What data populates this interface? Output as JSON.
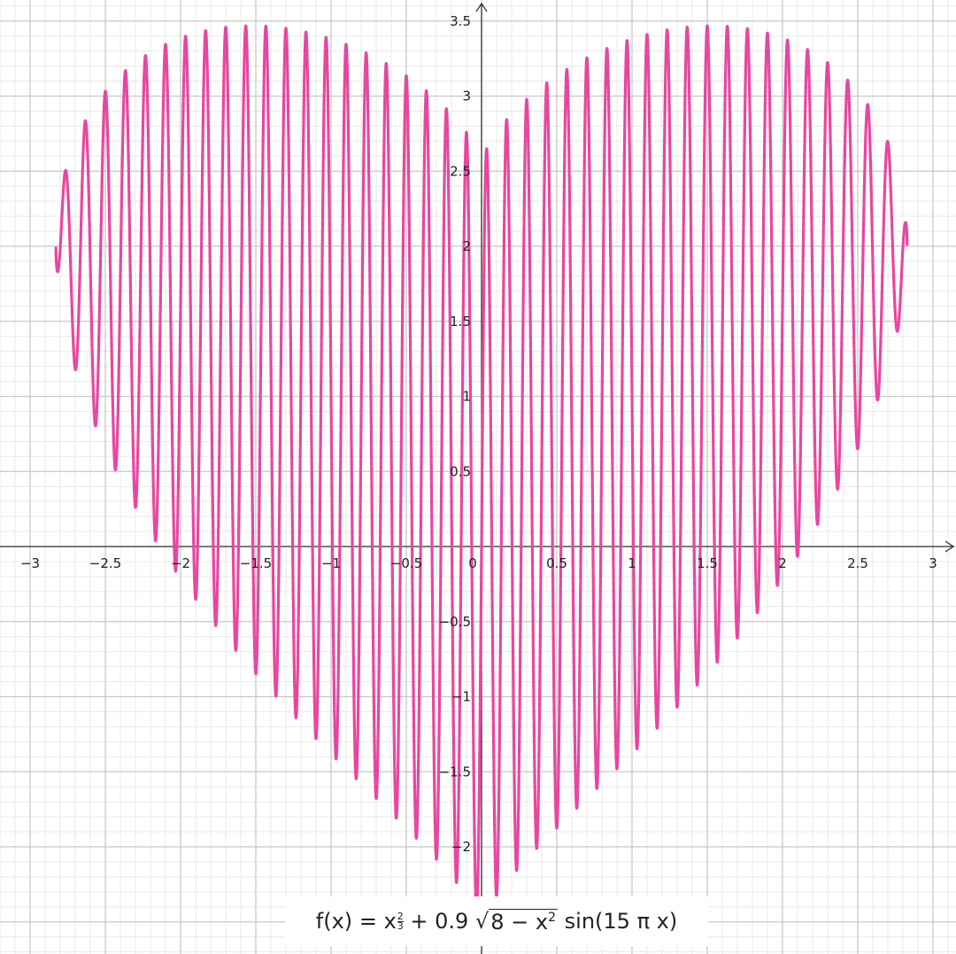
{
  "chart_data": {
    "type": "line",
    "title": "",
    "xlabel": "",
    "ylabel": "",
    "xlim": [
      -3.2,
      3.2
    ],
    "ylim": [
      -2.7,
      3.6
    ],
    "x_ticks": [
      -3,
      -2.5,
      -2,
      -1.5,
      -1,
      -0.5,
      0,
      0.5,
      1,
      1.5,
      2,
      2.5,
      3
    ],
    "x_tick_labels": [
      "−3",
      "−2.5",
      "−2",
      "−1.5",
      "−1",
      "−0.5",
      "0",
      "0.5",
      "1",
      "1.5",
      "2",
      "2.5",
      "3"
    ],
    "y_ticks": [
      -2,
      -1.5,
      -1,
      -0.5,
      0.5,
      1,
      1.5,
      2,
      2.5,
      3,
      3.5
    ],
    "y_tick_labels": [
      "−2",
      "−1.5",
      "−1",
      "−0.5",
      "0.5",
      "1",
      "1.5",
      "2",
      "2.5",
      "3",
      "3.5"
    ],
    "grid": true,
    "series": [
      {
        "function": "x^(2/3) + 0.9*sqrt(8 - x^2)*sin(15*pi*x)",
        "domain": [
          -2.8284,
          2.8284
        ],
        "color": "#e8479f"
      }
    ],
    "annotation": {
      "fx": "f(x)",
      "eq": "=",
      "base": "x",
      "exp_num": "2",
      "exp_den": "3",
      "plus": "+ 0.9",
      "radicand": "8 − x",
      "radicand_exp": "2",
      "sin_part": "sin(15 π x)"
    }
  }
}
